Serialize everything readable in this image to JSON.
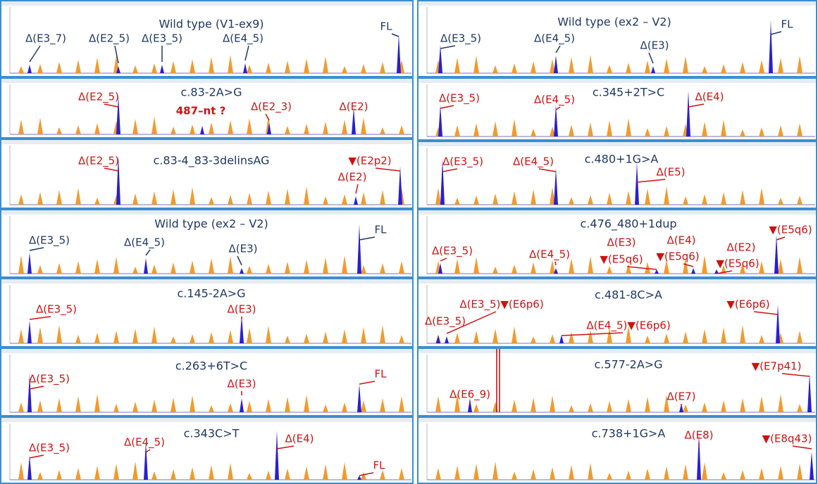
{
  "panels": [
    {
      "title": "Wild type (V1-ex9)",
      "label_color": "#1f3864",
      "labels": [
        "Δ(E3_7)",
        "Δ(E2_5)",
        "Δ(E3_5)",
        "Δ(E4_5)",
        "FL"
      ]
    },
    {
      "title": "c.83-2A>G",
      "label_color": "#d01010",
      "labels": [
        "Δ(E2_5)",
        "487–nt ?",
        "Δ(E2_3)",
        "Δ(E2)"
      ]
    },
    {
      "title": "c.83-4_83-3delinsAG",
      "label_color": "#d01010",
      "labels": [
        "Δ(E2_5)",
        "▼(E2p2)",
        "Δ(E2)"
      ]
    },
    {
      "title": "Wild type (ex2 – V2)",
      "label_color": "#1f3864",
      "labels": [
        "Δ(E3_5)",
        "Δ(E4_5)",
        "Δ(E3)",
        "FL"
      ]
    },
    {
      "title": "c.145-2A>G",
      "label_color": "#d01010",
      "labels": [
        "Δ(E3_5)",
        "Δ(E3)"
      ]
    },
    {
      "title": "c.263+6T>C",
      "label_color": "#d01010",
      "labels": [
        "Δ(E3_5)",
        "Δ(E3)",
        "FL"
      ]
    },
    {
      "title": "c.343C>T",
      "label_color": "#d01010",
      "labels": [
        "Δ(E3_5)",
        "Δ(E4_5)",
        "Δ(E4)",
        "FL"
      ]
    },
    {
      "title": "Wild type (ex2 – V2)",
      "label_color": "#1f3864",
      "labels": [
        "Δ(E3_5)",
        "Δ(E4_5)",
        "Δ(E3)",
        "FL"
      ]
    },
    {
      "title": "c.345+2T>C",
      "label_color": "#d01010",
      "labels": [
        "Δ(E3_5)",
        "Δ(E4_5)",
        "Δ(E4)"
      ]
    },
    {
      "title": "c.480+1G>A",
      "label_color": "#d01010",
      "labels": [
        "Δ(E3_5)",
        "Δ(E4_5)",
        "Δ(E5)"
      ]
    },
    {
      "title": "c.476_480+1dup",
      "label_color": "#d01010",
      "labels": [
        "▼(E5q6)",
        "Δ(E3_5)",
        "Δ(E4_5)",
        "Δ(E3)",
        "Δ(E4)",
        "Δ(E2)",
        "▼(E5q6)",
        "▼(E5q6)",
        "▼(E5q6)"
      ]
    },
    {
      "title": "c.481-8C>A",
      "label_color": "#d01010",
      "labels": [
        "Δ(E3_5)▼(E6p6)",
        "Δ(E3_5)",
        "Δ(E4_5)▼(E6p6)",
        "▼(E6p6)"
      ]
    },
    {
      "title": "c.577-2A>G",
      "label_color": "#d01010",
      "labels": [
        "▼(E7p41)",
        "Δ(E6_9)",
        "Δ(E7)"
      ]
    },
    {
      "title": "c.738+1G>A",
      "label_color": "#d01010",
      "labels": [
        "Δ(E8)",
        "▼(E8q43)"
      ]
    }
  ]
}
